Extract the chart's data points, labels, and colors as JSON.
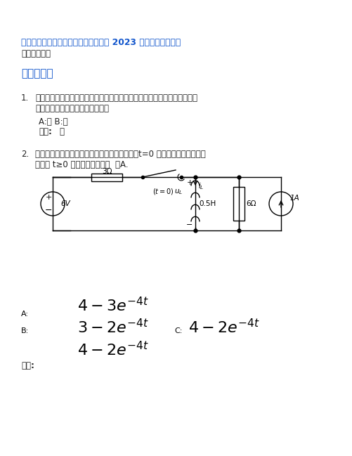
{
  "title": "电工电子技术智慧树知到课后章节答案 2023 年下华北科技学院",
  "subtitle": "华北科技学院",
  "section": "模块一测试",
  "q1_num": "1.",
  "q1_line1": "利用叠加定理计算电路时，电压源不作用时，就将该电压源短路；电流源不",
  "q1_line2": "作用时，就将该电流源开路。（）",
  "q1_options": "A:错 B:对",
  "q1_answer_label": "答案:",
  "q1_answer_value": "对",
  "q2_num": "2.",
  "q2_line1": "如图所示电路，开关闭合前电路已经处于稳态，t=0 时开关闭合。试用三要",
  "q2_line2": "素法求 t≥0 时，电感电流为（  ）A.",
  "title_color": "#1155CC",
  "section_color": "#1155CC",
  "body_color": "#222222",
  "bg_color": "#ffffff",
  "q2_answer_label": "答案:",
  "label_A": "A:",
  "label_B": "B:",
  "label_C": "C:"
}
